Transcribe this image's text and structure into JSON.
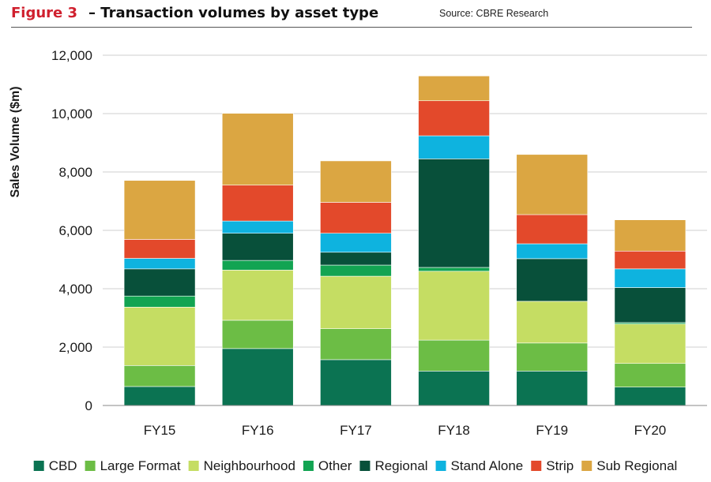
{
  "header": {
    "figure_label": "Figure 3",
    "title": "– Transaction volumes by asset type",
    "source": "Source: CBRE Research"
  },
  "chart_data": {
    "type": "bar",
    "stacked": true,
    "title": "Transaction volumes by asset type",
    "xlabel": "",
    "ylabel": "Sales Volume ($m)",
    "ylim": [
      0,
      12000
    ],
    "yticks": [
      0,
      2000,
      4000,
      6000,
      8000,
      10000,
      12000
    ],
    "ytick_labels": [
      "0",
      "2,000",
      "4,000",
      "6,000",
      "8,000",
      "10,000",
      "12,000"
    ],
    "grid": true,
    "legend_position": "bottom",
    "categories": [
      "FY15",
      "FY16",
      "FY17",
      "FY18",
      "FY19",
      "FY20"
    ],
    "series": [
      {
        "name": "CBD",
        "color": "#0b7352",
        "values": [
          650,
          1950,
          1570,
          1180,
          1180,
          630
        ]
      },
      {
        "name": "Large Format",
        "color": "#6cbd45",
        "values": [
          720,
          970,
          1060,
          1060,
          960,
          810
        ]
      },
      {
        "name": "Neighbourhood",
        "color": "#c5dd63",
        "values": [
          2000,
          1720,
          1800,
          2360,
          1430,
          1350
        ]
      },
      {
        "name": "Other",
        "color": "#12a452",
        "values": [
          380,
          330,
          380,
          130,
          0,
          50
        ]
      },
      {
        "name": "Regional",
        "color": "#08503a",
        "values": [
          930,
          930,
          440,
          3720,
          1460,
          1200
        ]
      },
      {
        "name": "Stand Alone",
        "color": "#0eb3df",
        "values": [
          360,
          420,
          650,
          790,
          510,
          640
        ]
      },
      {
        "name": "Strip",
        "color": "#e3492b",
        "values": [
          650,
          1230,
          1060,
          1200,
          1000,
          610
        ]
      },
      {
        "name": "Sub Regional",
        "color": "#dba642",
        "values": [
          2020,
          2460,
          1420,
          850,
          2060,
          1070
        ]
      }
    ]
  }
}
